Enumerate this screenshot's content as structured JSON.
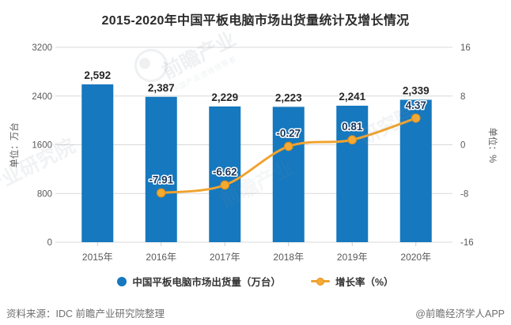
{
  "title": "2015-2020年中国平板电脑市场出货量统计及增长情况",
  "chart_data": {
    "type": "bar",
    "subtype": "bar-line-combo",
    "categories": [
      "2015年",
      "2016年",
      "2017年",
      "2018年",
      "2019年",
      "2020年"
    ],
    "series": [
      {
        "name": "中国平板电脑市场出货量（万台）",
        "type": "bar",
        "axis": "left",
        "color": "#1678be",
        "values": [
          2592,
          2387,
          2229,
          2223,
          2241,
          2339
        ],
        "labels": [
          "2,592",
          "2,387",
          "2,229",
          "2,223",
          "2,241",
          "2,339"
        ]
      },
      {
        "name": "增长率（%）",
        "type": "line",
        "axis": "right",
        "color": "#f0a330",
        "marker_fill": "#f5ab33",
        "marker_stroke": "#e2921c",
        "values": [
          null,
          -7.91,
          -6.62,
          -0.27,
          0.81,
          4.37
        ],
        "labels": [
          null,
          "-7.91",
          "-6.62",
          "-0.27",
          "0.81",
          "4.37"
        ]
      }
    ],
    "left_axis": {
      "label": "单位：万台",
      "range": [
        0,
        3200
      ],
      "ticks": [
        0,
        800,
        1600,
        2400,
        3200
      ]
    },
    "right_axis": {
      "label": "单位：%",
      "range": [
        -16,
        16
      ],
      "ticks": [
        -16,
        -8,
        0,
        8,
        16
      ]
    },
    "grid": true,
    "legend_position": "bottom"
  },
  "legend": {
    "shipments": "中国平板电脑市场出货量（万台）",
    "growth": "增长率（%）"
  },
  "footer": {
    "source": "资料来源：IDC 前瞻产业研究院整理",
    "credit": "@前瞻经济学人APP"
  },
  "watermark": {
    "brand": "前瞻产业",
    "brand_sub": "中国产业咨询领导者",
    "fragment_left": "产业研究院",
    "fragment_right": "研究院",
    "fragment_center": "前瞻产业"
  },
  "colors": {
    "bar": "#1678be",
    "line": "#f0a330",
    "grid": "#d9d9d9",
    "axis_text": "#595959",
    "bar_label": "#262626",
    "line_label": "#17375e"
  }
}
